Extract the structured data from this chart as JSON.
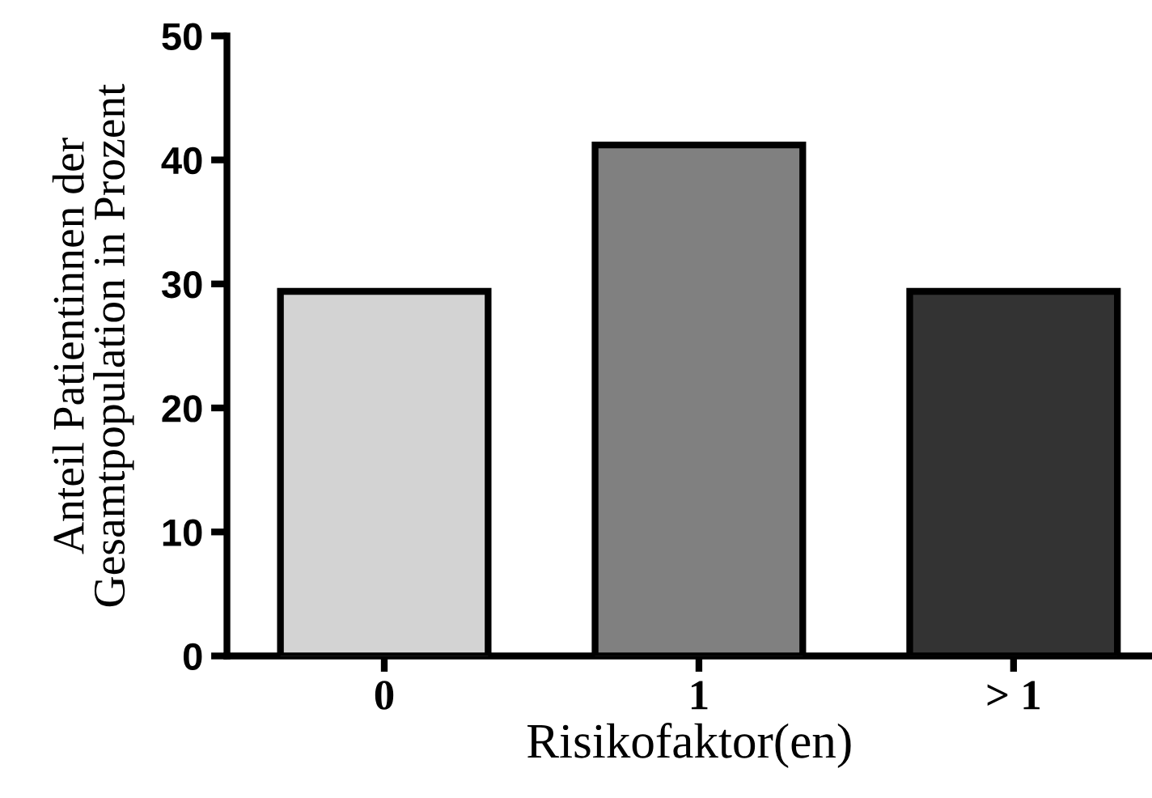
{
  "chart_data": {
    "type": "bar",
    "xlabel": "Risikofaktor(en)",
    "ylabel": "Anteil Patientinnen der\nGesamtpopulation in Prozent",
    "categories": [
      "0",
      "1",
      "> 1"
    ],
    "values": [
      29.4,
      41.2,
      29.4
    ],
    "colors": [
      "#d3d3d3",
      "#808080",
      "#333333"
    ],
    "ylim": [
      0,
      50
    ],
    "yticks": [
      0,
      10,
      20,
      30,
      40,
      50
    ],
    "grid": false,
    "legend": false
  }
}
